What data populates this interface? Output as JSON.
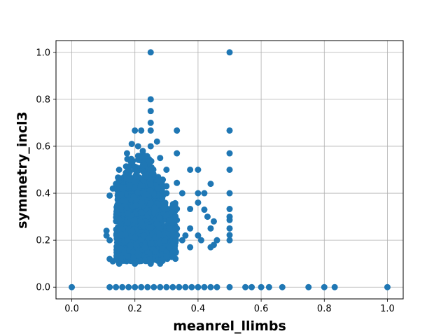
{
  "chart_data": {
    "type": "scatter",
    "xlabel": "meanrel_llimbs",
    "ylabel": "symmetry_incl3",
    "xlim": [
      -0.05,
      1.05
    ],
    "ylim": [
      -0.05,
      1.05
    ],
    "xticks": [
      0.0,
      0.2,
      0.4,
      0.6,
      0.8,
      1.0
    ],
    "yticks": [
      0.0,
      0.2,
      0.4,
      0.6,
      0.8,
      1.0
    ],
    "xtick_labels": [
      "0.0",
      "0.2",
      "0.4",
      "0.6",
      "0.8",
      "1.0"
    ],
    "ytick_labels": [
      "0.0",
      "0.2",
      "0.4",
      "0.6",
      "0.8",
      "1.0"
    ],
    "grid": true,
    "marker_color": "#1f77b4",
    "points": [
      [
        0.0,
        0.0
      ],
      [
        0.12,
        0.0
      ],
      [
        0.14,
        0.0
      ],
      [
        0.16,
        0.0
      ],
      [
        0.18,
        0.0
      ],
      [
        0.2,
        0.0
      ],
      [
        0.22,
        0.0
      ],
      [
        0.24,
        0.0
      ],
      [
        0.26,
        0.0
      ],
      [
        0.28,
        0.0
      ],
      [
        0.3,
        0.0
      ],
      [
        0.32,
        0.0
      ],
      [
        0.34,
        0.0
      ],
      [
        0.36,
        0.0
      ],
      [
        0.38,
        0.0
      ],
      [
        0.4,
        0.0
      ],
      [
        0.42,
        0.0
      ],
      [
        0.44,
        0.0
      ],
      [
        0.46,
        0.0
      ],
      [
        0.5,
        0.0
      ],
      [
        0.55,
        0.0
      ],
      [
        0.57,
        0.0
      ],
      [
        0.6,
        0.0
      ],
      [
        0.625,
        0.0
      ],
      [
        0.667,
        0.0
      ],
      [
        0.75,
        0.0
      ],
      [
        0.8,
        0.0
      ],
      [
        0.833,
        0.0
      ],
      [
        1.0,
        0.0
      ],
      [
        0.25,
        1.0
      ],
      [
        0.5,
        1.0
      ],
      [
        0.25,
        0.8
      ],
      [
        0.25,
        0.75
      ],
      [
        0.25,
        0.7
      ],
      [
        0.2,
        0.667
      ],
      [
        0.22,
        0.667
      ],
      [
        0.25,
        0.667
      ],
      [
        0.333,
        0.667
      ],
      [
        0.5,
        0.667
      ],
      [
        0.19,
        0.61
      ],
      [
        0.21,
        0.6
      ],
      [
        0.25,
        0.6
      ],
      [
        0.27,
        0.62
      ],
      [
        0.175,
        0.57
      ],
      [
        0.225,
        0.58
      ],
      [
        0.333,
        0.57
      ],
      [
        0.5,
        0.57
      ],
      [
        0.18,
        0.5
      ],
      [
        0.2,
        0.5
      ],
      [
        0.23,
        0.52
      ],
      [
        0.25,
        0.5
      ],
      [
        0.3,
        0.5
      ],
      [
        0.375,
        0.5
      ],
      [
        0.4,
        0.5
      ],
      [
        0.5,
        0.5
      ],
      [
        0.15,
        0.5
      ],
      [
        0.28,
        0.55
      ],
      [
        0.3,
        0.43
      ],
      [
        0.333,
        0.444
      ],
      [
        0.44,
        0.44
      ],
      [
        0.5,
        0.4
      ],
      [
        0.4,
        0.4
      ],
      [
        0.42,
        0.4
      ],
      [
        0.35,
        0.4
      ],
      [
        0.3,
        0.4
      ],
      [
        0.13,
        0.42
      ],
      [
        0.14,
        0.44
      ],
      [
        0.12,
        0.39
      ],
      [
        0.333,
        0.333
      ],
      [
        0.375,
        0.333
      ],
      [
        0.4,
        0.36
      ],
      [
        0.42,
        0.33
      ],
      [
        0.43,
        0.3
      ],
      [
        0.45,
        0.28
      ],
      [
        0.44,
        0.25
      ],
      [
        0.5,
        0.333
      ],
      [
        0.5,
        0.3
      ],
      [
        0.5,
        0.286
      ],
      [
        0.5,
        0.25
      ],
      [
        0.5,
        0.222
      ],
      [
        0.5,
        0.2
      ],
      [
        0.46,
        0.2
      ],
      [
        0.45,
        0.18
      ],
      [
        0.44,
        0.17
      ],
      [
        0.41,
        0.2
      ],
      [
        0.4,
        0.22
      ],
      [
        0.375,
        0.25
      ],
      [
        0.36,
        0.22
      ],
      [
        0.35,
        0.2
      ],
      [
        0.33,
        0.2
      ],
      [
        0.333,
        0.286
      ],
      [
        0.333,
        0.25
      ],
      [
        0.333,
        0.222
      ],
      [
        0.31,
        0.25
      ],
      [
        0.375,
        0.17
      ],
      [
        0.33,
        0.15
      ],
      [
        0.3,
        0.15
      ],
      [
        0.29,
        0.12
      ],
      [
        0.11,
        0.24
      ],
      [
        0.12,
        0.12
      ],
      [
        0.13,
        0.11
      ],
      [
        0.12,
        0.2
      ],
      [
        0.11,
        0.22
      ],
      [
        0.15,
        0.1
      ],
      [
        0.2,
        0.1
      ],
      [
        0.25,
        0.1
      ],
      [
        0.28,
        0.1
      ],
      [
        0.3,
        0.13
      ],
      [
        0.31,
        0.17
      ]
    ],
    "clusters": [
      {
        "x": [
          0.14,
          0.29
        ],
        "y": [
          0.11,
          0.47
        ],
        "n": 900
      },
      {
        "x": [
          0.17,
          0.26
        ],
        "y": [
          0.2,
          0.56
        ],
        "n": 220
      },
      {
        "x": [
          0.26,
          0.33
        ],
        "y": [
          0.12,
          0.36
        ],
        "n": 180
      }
    ]
  }
}
